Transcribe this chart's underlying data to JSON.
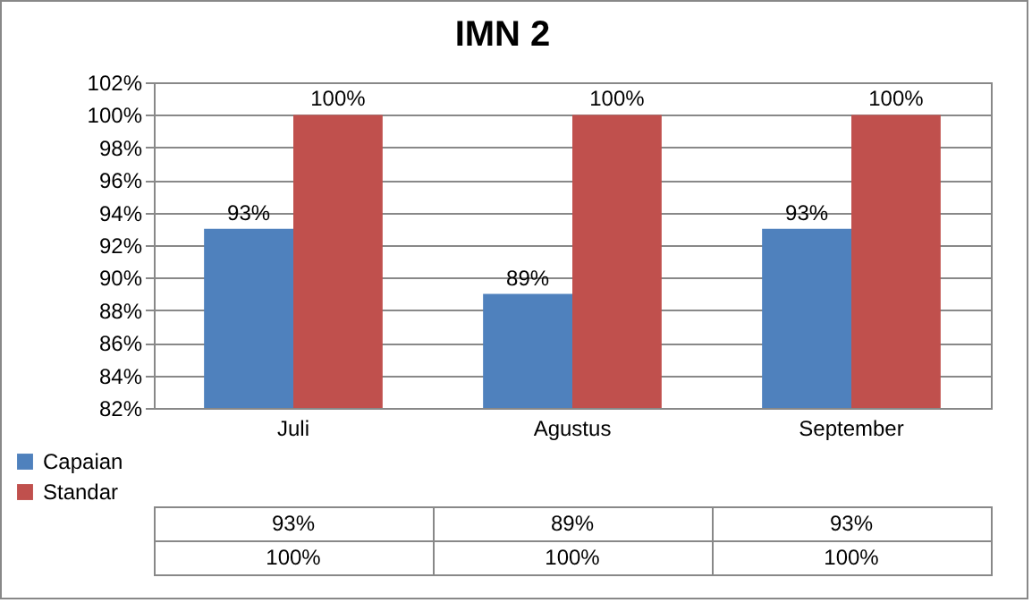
{
  "chart_data": {
    "type": "bar",
    "title": "IMN 2",
    "categories": [
      "Juli",
      "Agustus",
      "September"
    ],
    "series": [
      {
        "name": "Capaian",
        "color": "#4f81bd",
        "values": [
          93,
          89,
          93
        ],
        "value_labels": [
          "93%",
          "89%",
          "93%"
        ]
      },
      {
        "name": "Standar",
        "color": "#c0504d",
        "values": [
          100,
          100,
          100
        ],
        "value_labels": [
          "100%",
          "100%",
          "100%"
        ]
      }
    ],
    "ylim": [
      82,
      102
    ],
    "yticks": [
      {
        "value": 82,
        "label": "82%"
      },
      {
        "value": 84,
        "label": "84%"
      },
      {
        "value": 86,
        "label": "86%"
      },
      {
        "value": 88,
        "label": "88%"
      },
      {
        "value": 90,
        "label": "90%"
      },
      {
        "value": 92,
        "label": "92%"
      },
      {
        "value": 94,
        "label": "94%"
      },
      {
        "value": 96,
        "label": "96%"
      },
      {
        "value": 98,
        "label": "98%"
      },
      {
        "value": 100,
        "label": "100%"
      },
      {
        "value": 102,
        "label": "102%"
      }
    ],
    "grid": "y",
    "legend": "bottom"
  }
}
